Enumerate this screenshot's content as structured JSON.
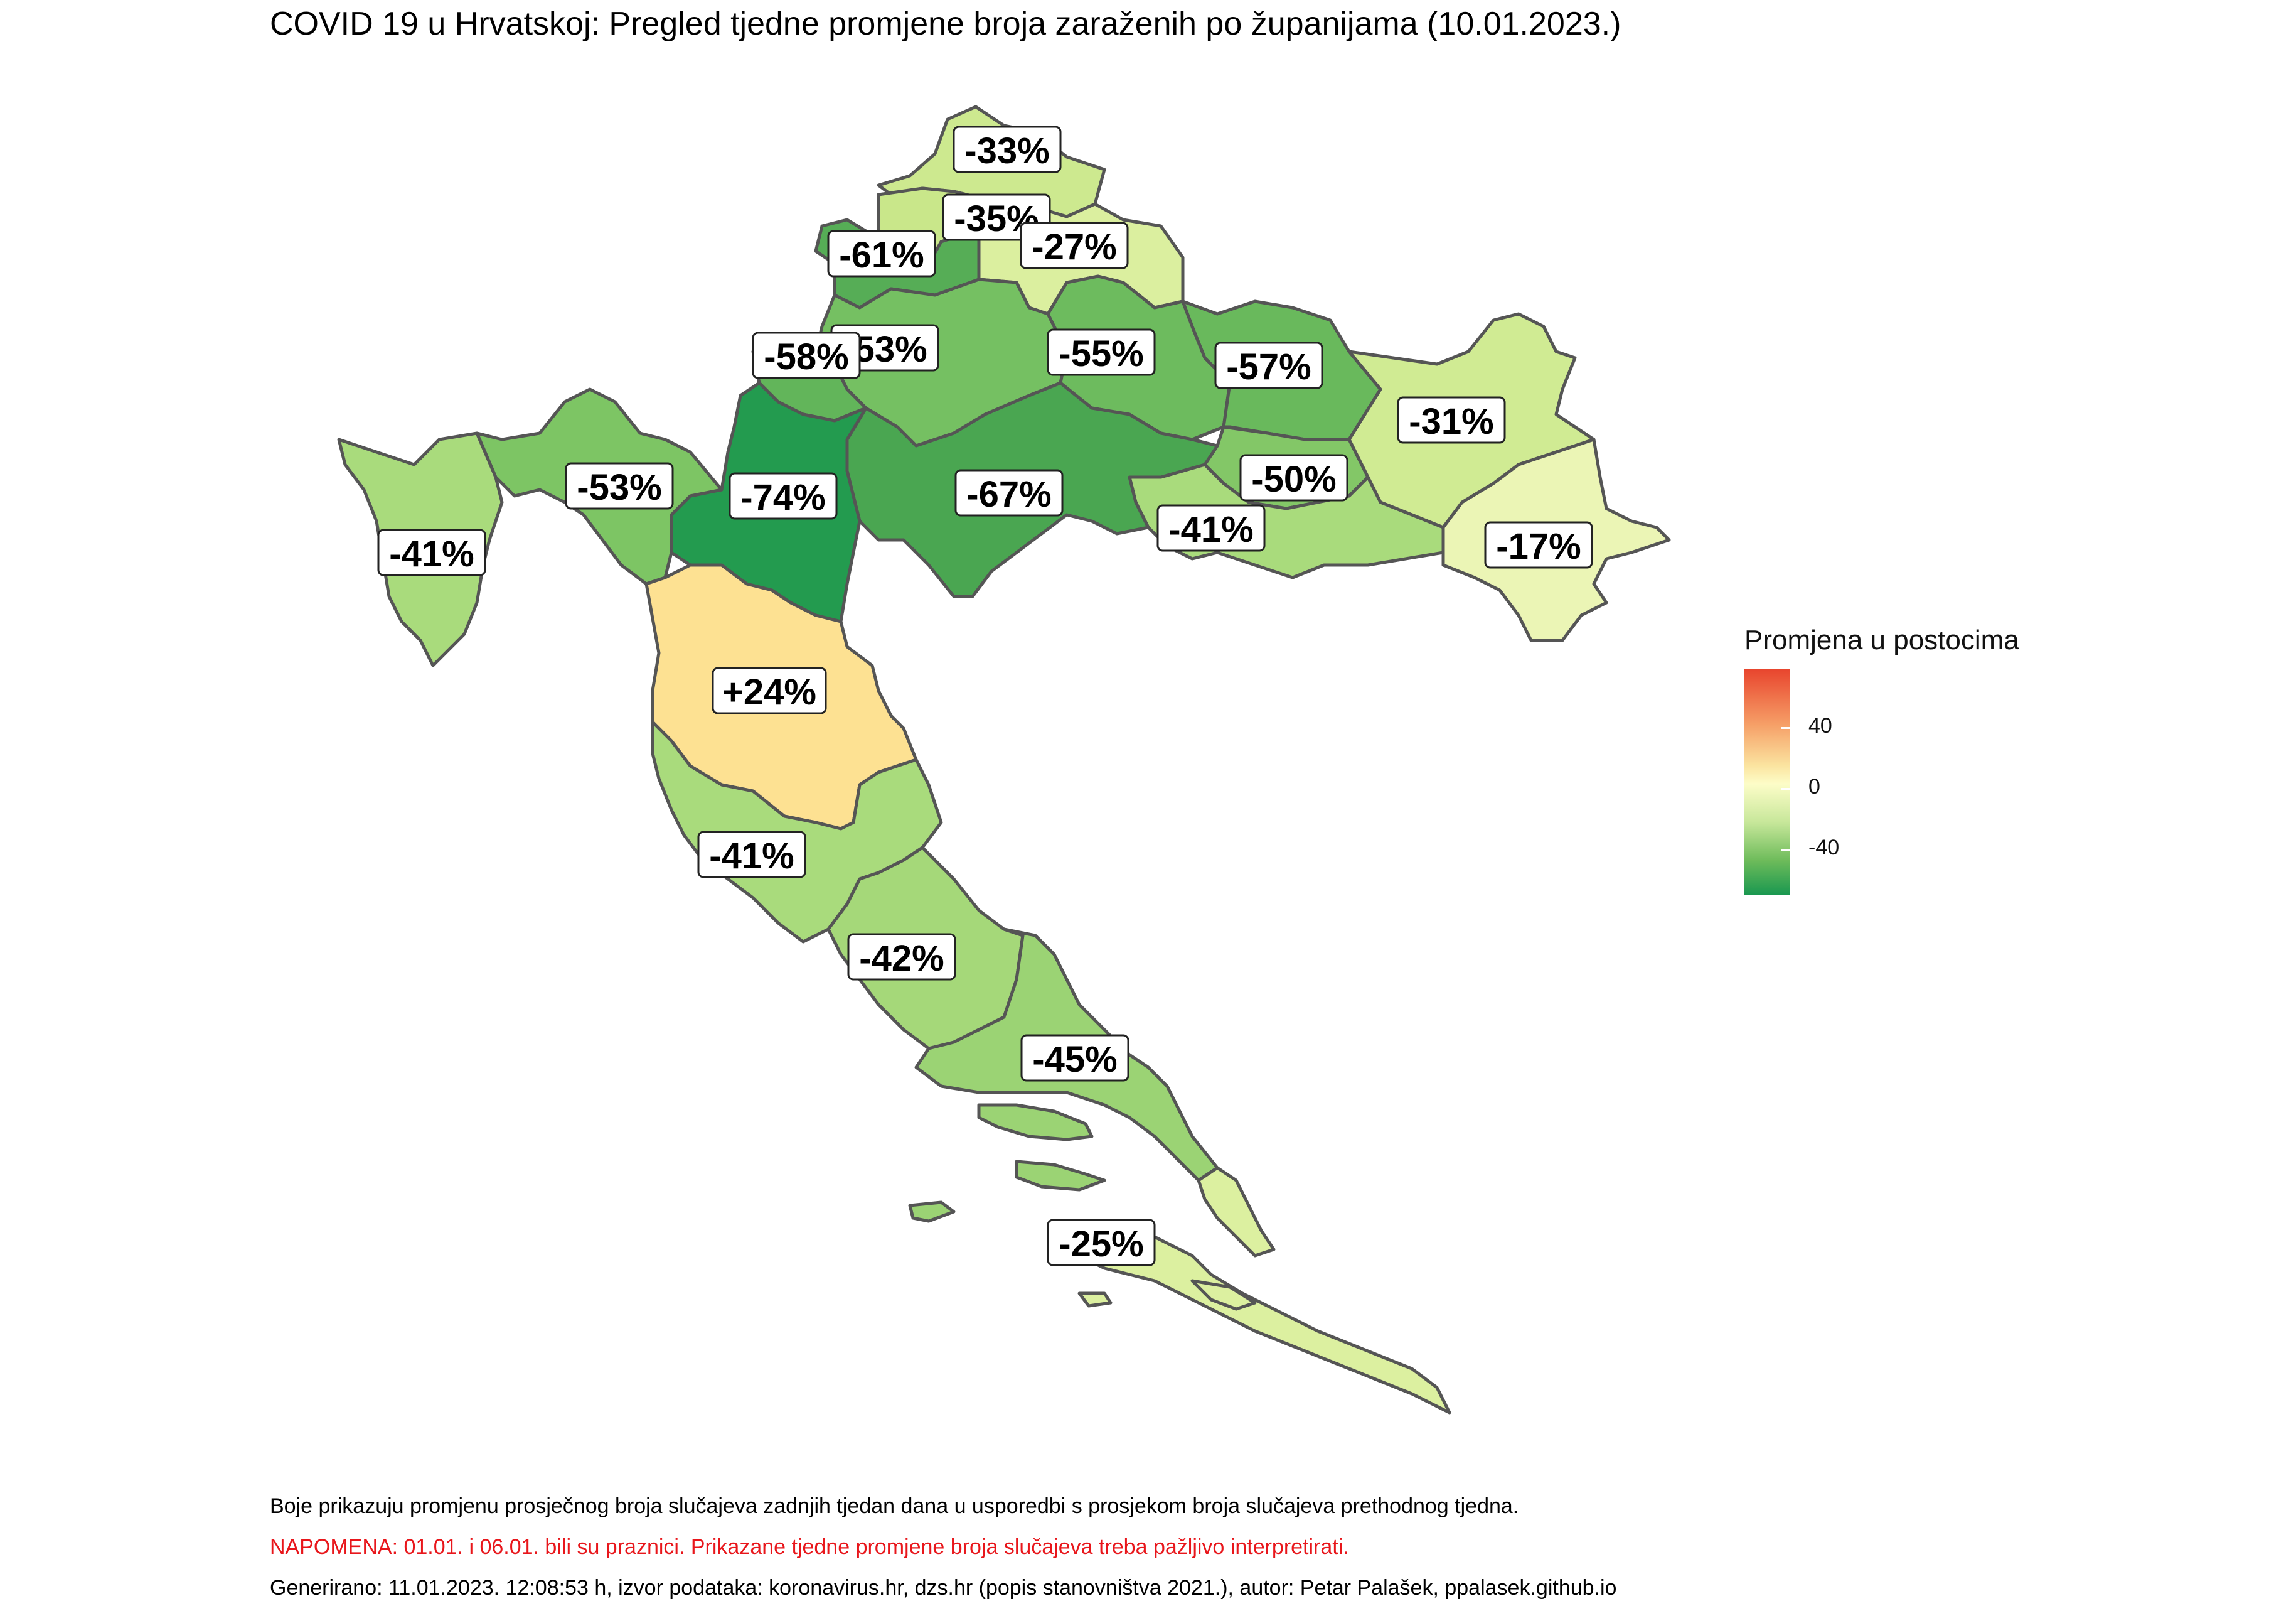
{
  "title": "COVID 19 u Hrvatskoj: Pregled tjedne promjene broja zaraženih po županijama (10.01.2023.)",
  "legend": {
    "title": "Promjena u postocima",
    "ticks": [
      "40",
      "0",
      "-40"
    ],
    "colors": {
      "high": "#e8442d",
      "mid": "#fdfdc8",
      "low": "#1a9850"
    }
  },
  "counties": [
    {
      "key": "medimurska",
      "label": "-33%",
      "value": -33,
      "color": "#cde98f"
    },
    {
      "key": "varazdinska",
      "label": "-35%",
      "value": -35,
      "color": "#c9e78a"
    },
    {
      "key": "koprivnicko",
      "label": "-27%",
      "value": -27,
      "color": "#dbef9f"
    },
    {
      "key": "krapinsko",
      "label": "-61%",
      "value": -61,
      "color": "#56ad56"
    },
    {
      "key": "zagrebacka",
      "label": "-53%",
      "value": -53,
      "color": "#75c062"
    },
    {
      "key": "grad-zagreb",
      "label": "-58%",
      "value": -58,
      "color": "#62b55a"
    },
    {
      "key": "bjelovarska",
      "label": "-55%",
      "value": -55,
      "color": "#6dbb5e"
    },
    {
      "key": "viroviticka",
      "label": "-57%",
      "value": -57,
      "color": "#69b95c"
    },
    {
      "key": "osjecka",
      "label": "-31%",
      "value": -31,
      "color": "#d0eb93"
    },
    {
      "key": "pozesko",
      "label": "-50%",
      "value": -50,
      "color": "#83c767"
    },
    {
      "key": "brodsko",
      "label": "-41%",
      "value": -41,
      "color": "#a9db7c"
    },
    {
      "key": "vukovarska",
      "label": "-17%",
      "value": -17,
      "color": "#ebf5b5"
    },
    {
      "key": "sisacka",
      "label": "-67%",
      "value": -67,
      "color": "#4aa651"
    },
    {
      "key": "karlovacka",
      "label": "-74%",
      "value": -74,
      "color": "#239b4f"
    },
    {
      "key": "primorsko",
      "label": "-53%",
      "value": -53,
      "color": "#7dc564"
    },
    {
      "key": "istarska",
      "label": "-41%",
      "value": -41,
      "color": "#a9db7c"
    },
    {
      "key": "licko",
      "label": "+24%",
      "value": 24,
      "color": "#fde192"
    },
    {
      "key": "zadarska",
      "label": "-41%",
      "value": -41,
      "color": "#a9db7c"
    },
    {
      "key": "sibenska",
      "label": "-42%",
      "value": -42,
      "color": "#a5d879"
    },
    {
      "key": "splitska",
      "label": "-45%",
      "value": -45,
      "color": "#9bd374"
    },
    {
      "key": "dubrovacka",
      "label": "-25%",
      "value": -25,
      "color": "#dcf0a0"
    }
  ],
  "notes": {
    "explain": "Boje prikazuju promjenu prosječnog broja slučajeva zadnjih tjedan dana u usporedbi s prosjekom broja slučajeva prethodnog tjedna.",
    "warning": "NAPOMENA: 01.01. i 06.01. bili su praznici. Prikazane tjedne promjene broja slučajeva treba pažljivo interpretirati.",
    "generated": "Generirano: 11.01.2023. 12:08:53 h, izvor podataka: koronavirus.hr, dzs.hr (popis stanovništva 2021.), autor: Petar Palašek, ppalasek.github.io"
  }
}
